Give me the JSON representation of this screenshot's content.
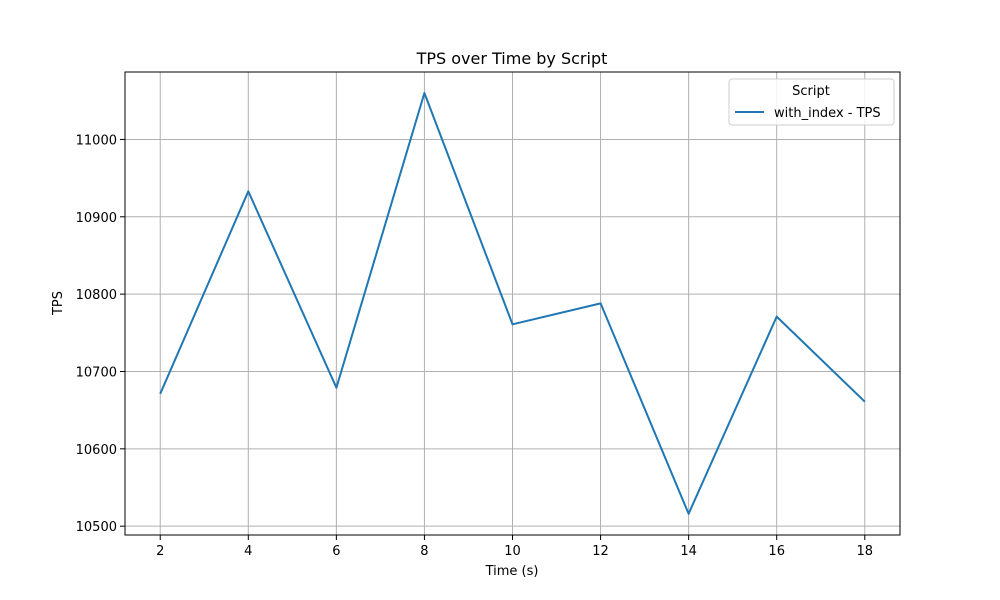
{
  "chart_data": {
    "type": "line",
    "title": "TPS over Time by Script",
    "xlabel": "Time (s)",
    "ylabel": "TPS",
    "x": [
      2,
      4,
      6,
      8,
      10,
      12,
      14,
      16,
      18
    ],
    "series": [
      {
        "name": "with_index - TPS",
        "values": [
          10671,
          10933,
          10679,
          11060,
          10761,
          10788,
          10516,
          10771,
          10661
        ],
        "color": "#1f77b4"
      }
    ],
    "xticks": [
      2,
      4,
      6,
      8,
      10,
      12,
      14,
      16,
      18
    ],
    "yticks": [
      10500,
      10600,
      10700,
      10800,
      10900,
      11000
    ],
    "xlim": [
      1.2,
      18.8
    ],
    "ylim": [
      10488.6,
      11087.2
    ],
    "grid": true,
    "legend": {
      "title": "Script",
      "placement": "top-right"
    }
  }
}
